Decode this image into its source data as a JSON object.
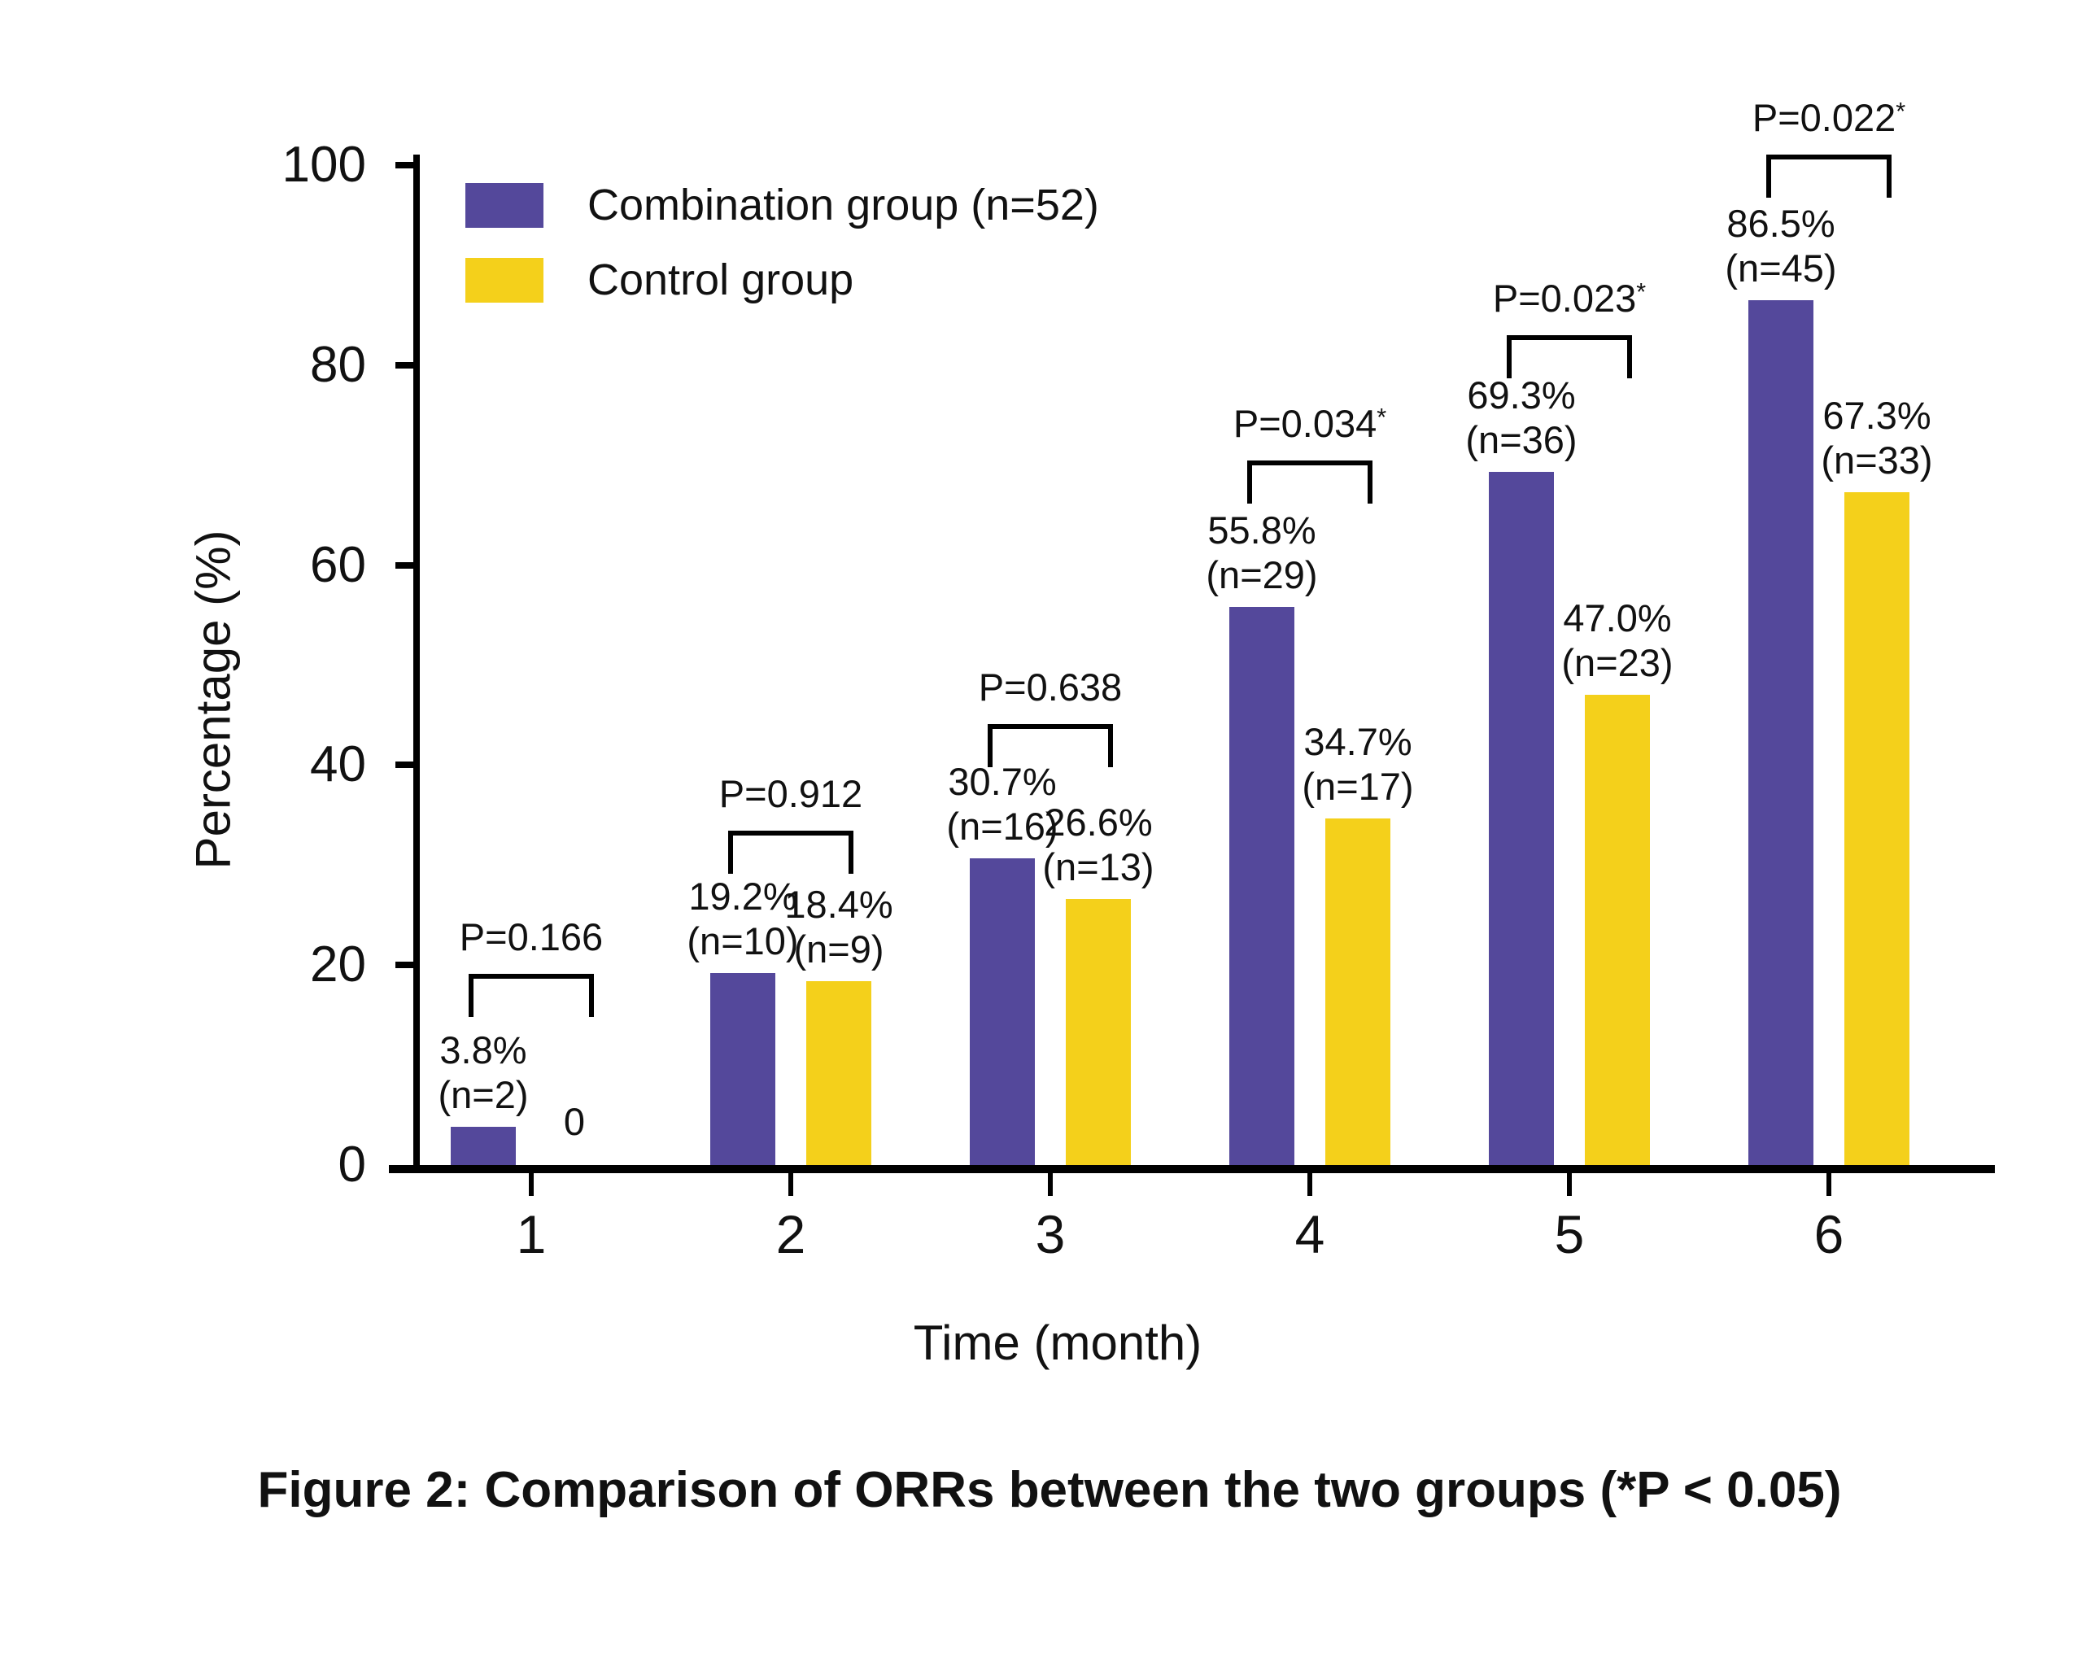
{
  "figure_caption": "Figure 2: Comparison of ORRs between the two groups (*P < 0.05)",
  "chart_data": {
    "type": "bar",
    "title": "",
    "xlabel": "Time (month)",
    "ylabel": "Percentage (%)",
    "ylim": [
      0,
      100
    ],
    "yticks": [
      0,
      20,
      40,
      60,
      80,
      100
    ],
    "categories": [
      "1",
      "2",
      "3",
      "4",
      "5",
      "6"
    ],
    "grid": false,
    "legend_position": "top-left-inside",
    "series": [
      {
        "name": "Combination group (n=52)",
        "color": "#54489B",
        "values": [
          3.8,
          19.2,
          30.7,
          55.8,
          69.3,
          86.5
        ],
        "counts": [
          2,
          10,
          16,
          29,
          36,
          45
        ],
        "bar_labels": [
          "3.8%|(n=2)",
          "19.2%|(n=10)",
          "30.7%|(n=16)",
          "55.8%|(n=29)",
          "69.3%|(n=36)",
          "86.5%|(n=45)"
        ]
      },
      {
        "name": "Control group",
        "color": "#F4D01B",
        "values": [
          0,
          18.4,
          26.6,
          34.7,
          47.0,
          67.3
        ],
        "counts": [
          0,
          9,
          13,
          17,
          23,
          33
        ],
        "bar_labels": [
          "0",
          "18.4%|(n=9)",
          "26.6%|(n=13)",
          "34.7%|(n=17)",
          "47.0%|(n=23)",
          "67.3%|(n=33)"
        ]
      }
    ],
    "p_values": [
      {
        "label": "P=0.166",
        "sig": false
      },
      {
        "label": "P=0.912",
        "sig": false
      },
      {
        "label": "P=0.638",
        "sig": false
      },
      {
        "label": "P=0.034",
        "sig": true
      },
      {
        "label": "P=0.023",
        "sig": true
      },
      {
        "label": "P=0.022",
        "sig": true
      }
    ]
  }
}
